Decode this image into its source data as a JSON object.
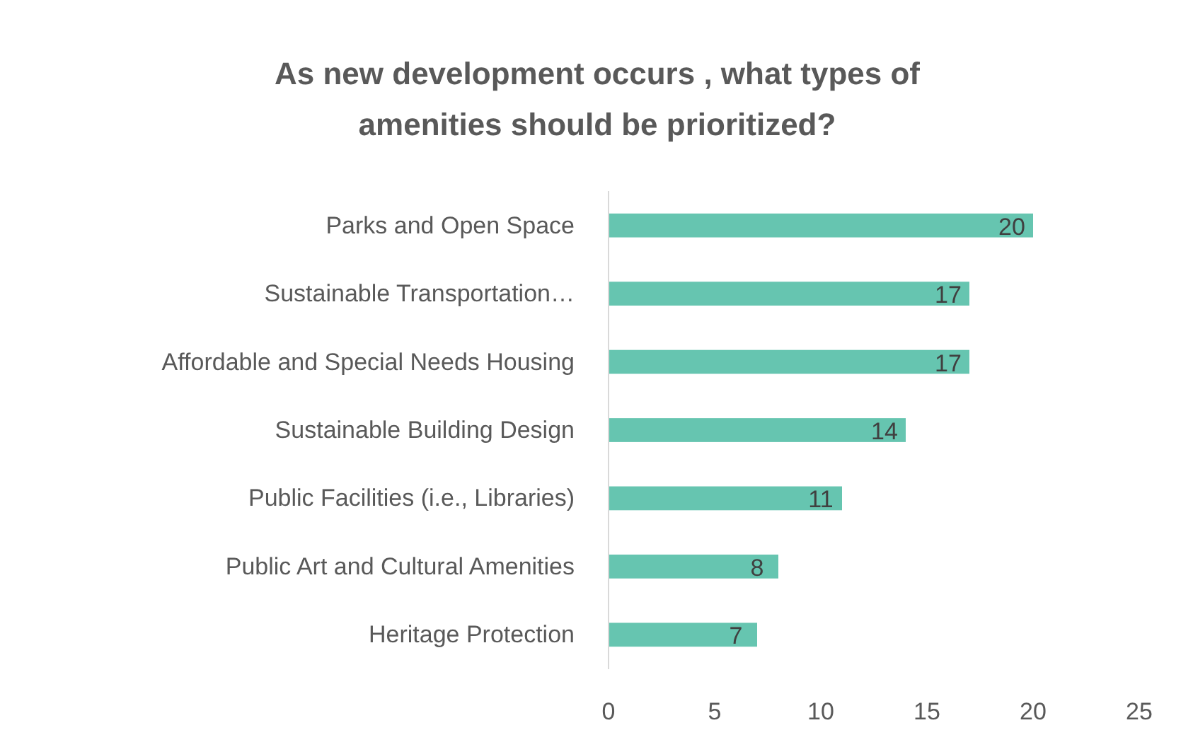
{
  "chart_data": {
    "type": "bar",
    "orientation": "horizontal",
    "title": "As new development occurs , what types of amenities should be prioritized?",
    "categories": [
      "Parks and Open Space",
      "Sustainable Transportation…",
      "Affordable and Special Needs Housing",
      "Sustainable Building Design",
      "Public Facilities (i.e., Libraries)",
      "Public Art and Cultural Amenities",
      "Heritage Protection"
    ],
    "values": [
      20,
      17,
      17,
      14,
      11,
      8,
      7
    ],
    "color": "#66c5b0",
    "xlim": [
      0,
      25
    ],
    "xticks": [
      0,
      5,
      10,
      15,
      20,
      25
    ],
    "data_labels": true
  }
}
